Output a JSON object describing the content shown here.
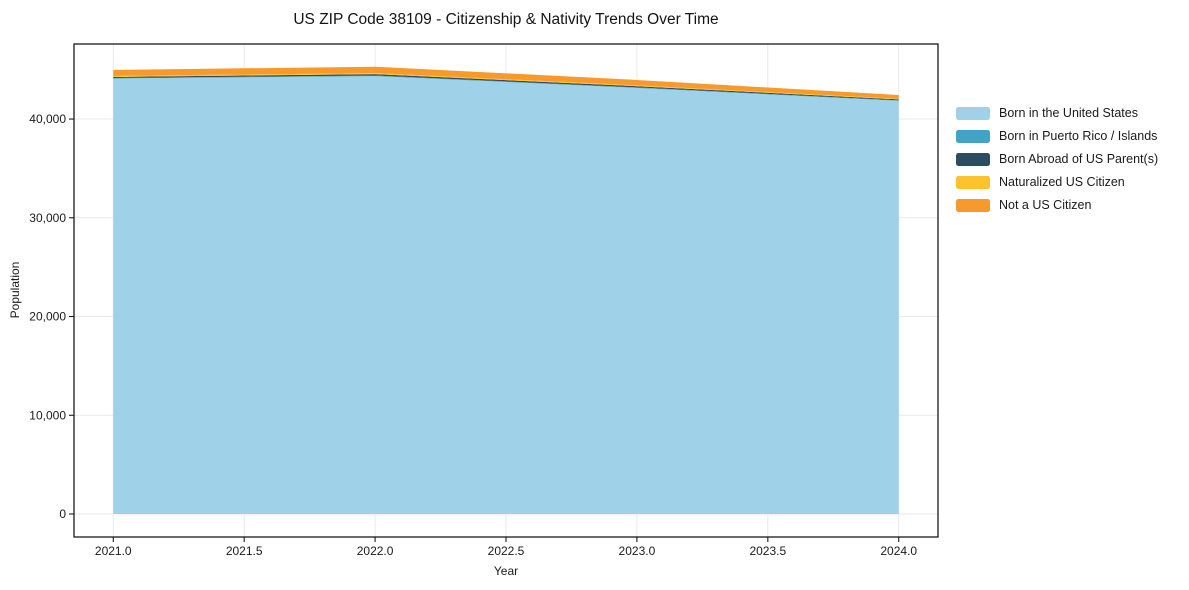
{
  "title": "US ZIP Code 38109 - Citizenship & Nativity Trends Over Time",
  "chart_data": {
    "type": "area",
    "stacked": true,
    "title": "US ZIP Code 38109 - Citizenship & Nativity Trends Over Time",
    "xlabel": "Year",
    "ylabel": "Population",
    "x": [
      2021,
      2022,
      2023,
      2024
    ],
    "series": [
      {
        "name": "Born in the United States",
        "color": "#9fd1e8",
        "values": [
          44100,
          44350,
          43150,
          41850
        ]
      },
      {
        "name": "Born in Puerto Rico / Islands",
        "color": "#41a4c4",
        "values": [
          55,
          65,
          55,
          45
        ]
      },
      {
        "name": "Born Abroad of US Parent(s)",
        "color": "#2b4d5f",
        "values": [
          115,
          135,
          120,
          95
        ]
      },
      {
        "name": "Naturalized US Citizen",
        "color": "#fcc32e",
        "values": [
          95,
          105,
          90,
          65
        ]
      },
      {
        "name": "Not a US Citizen",
        "color": "#f8992b",
        "values": [
          610,
          645,
          545,
          380
        ]
      }
    ],
    "x_ticks": [
      2021.0,
      2021.5,
      2022.0,
      2022.5,
      2023.0,
      2023.5,
      2024.0
    ],
    "x_tick_labels": [
      "2021.0",
      "2021.5",
      "2022.0",
      "2022.5",
      "2023.0",
      "2023.5",
      "2024.0"
    ],
    "y_ticks": [
      0,
      10000,
      20000,
      30000,
      40000
    ],
    "y_tick_labels": [
      "0",
      "10,000",
      "20,000",
      "30,000",
      "40,000"
    ],
    "xlim": [
      2020.85,
      2024.15
    ],
    "ylim": [
      -2330,
      47600
    ],
    "grid": true,
    "legend_position": "right",
    "colors": {
      "gridline": "#e9e9e9",
      "axis": "#1a1a1a",
      "text": "#1a1a1a",
      "background": "#ffffff"
    }
  }
}
